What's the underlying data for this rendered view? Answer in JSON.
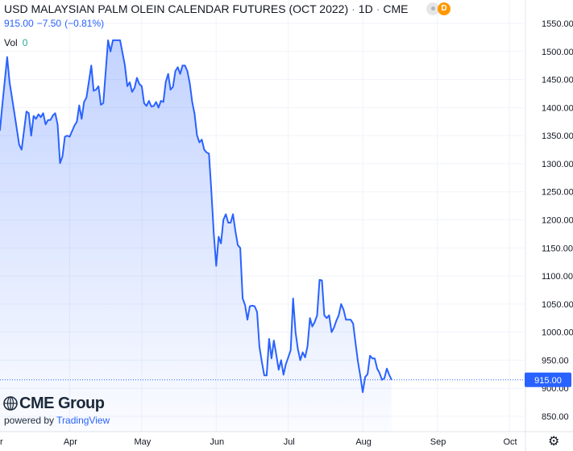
{
  "header": {
    "symbol_title": "USD MALAYSIAN PALM OLEIN CALENDAR FUTURES (OCT 2022)",
    "interval": "1D",
    "exchange": "CME",
    "separator": "·",
    "last_price": "915.00",
    "change": "−7.50",
    "change_pct": "(−0.81%)",
    "vol_label": "Vol",
    "vol_value": "0",
    "badge_letter": "D"
  },
  "branding": {
    "cme": "CME Group",
    "powered_by": "powered by",
    "tradingview": "TradingView"
  },
  "last_price_label": "915.00",
  "colors": {
    "line": "#2962ff",
    "area_top": "#2962ff",
    "price_label_bg": "#2962ff",
    "badge": "#ff9800"
  },
  "icons": {
    "settings": "gear-icon"
  },
  "chart_data": {
    "type": "area",
    "title": "USD MALAYSIAN PALM OLEIN CALENDAR FUTURES (OCT 2022)",
    "y_ticks": [
      1550,
      1500,
      1450,
      1400,
      1350,
      1300,
      1250,
      1200,
      1150,
      1100,
      1050,
      1000,
      950,
      900,
      850
    ],
    "ylim": [
      830,
      1570
    ],
    "x_tick_labels": [
      "r",
      "Apr",
      "May",
      "Jun",
      "Jul",
      "Aug",
      "Sep",
      "Oct"
    ],
    "x_tick_dates": [
      "2022-03-01",
      "2022-04-01",
      "2022-05-01",
      "2022-06-01",
      "2022-07-01",
      "2022-08-01",
      "2022-09-01",
      "2022-10-01"
    ],
    "xlim": [
      "2022-03-01",
      "2022-10-01"
    ],
    "grid": true,
    "series": [
      {
        "points": [
          [
            "2022-03-01",
            1368
          ],
          [
            "2022-03-02",
            1407
          ],
          [
            "2022-03-03",
            1360
          ],
          [
            "2022-03-04",
            1405
          ],
          [
            "2022-03-06",
            1490
          ],
          [
            "2022-03-07",
            1445
          ],
          [
            "2022-03-09",
            1390
          ],
          [
            "2022-03-11",
            1334
          ],
          [
            "2022-03-12",
            1325
          ],
          [
            "2022-03-14",
            1393
          ],
          [
            "2022-03-15",
            1390
          ],
          [
            "2022-03-16",
            1350
          ],
          [
            "2022-03-17",
            1385
          ],
          [
            "2022-03-18",
            1380
          ],
          [
            "2022-03-19",
            1388
          ],
          [
            "2022-03-20",
            1383
          ],
          [
            "2022-03-21",
            1390
          ],
          [
            "2022-03-22",
            1370
          ],
          [
            "2022-03-23",
            1378
          ],
          [
            "2022-03-24",
            1378
          ],
          [
            "2022-03-25",
            1386
          ],
          [
            "2022-03-26",
            1390
          ],
          [
            "2022-03-27",
            1370
          ],
          [
            "2022-03-28",
            1301
          ],
          [
            "2022-03-29",
            1313
          ],
          [
            "2022-03-30",
            1348
          ],
          [
            "2022-03-31",
            1350
          ],
          [
            "2022-04-01",
            1348
          ],
          [
            "2022-04-03",
            1368
          ],
          [
            "2022-04-04",
            1375
          ],
          [
            "2022-04-05",
            1404
          ],
          [
            "2022-04-06",
            1380
          ],
          [
            "2022-04-07",
            1410
          ],
          [
            "2022-04-08",
            1418
          ],
          [
            "2022-04-10",
            1475
          ],
          [
            "2022-04-11",
            1430
          ],
          [
            "2022-04-12",
            1432
          ],
          [
            "2022-04-13",
            1438
          ],
          [
            "2022-04-14",
            1405
          ],
          [
            "2022-04-15",
            1408
          ],
          [
            "2022-04-17",
            1520
          ],
          [
            "2022-04-18",
            1500
          ],
          [
            "2022-04-19",
            1520
          ],
          [
            "2022-04-20",
            1520
          ],
          [
            "2022-04-22",
            1520
          ],
          [
            "2022-04-24",
            1475
          ],
          [
            "2022-04-25",
            1438
          ],
          [
            "2022-04-26",
            1445
          ],
          [
            "2022-04-27",
            1428
          ],
          [
            "2022-04-28",
            1435
          ],
          [
            "2022-04-29",
            1453
          ],
          [
            "2022-04-30",
            1442
          ],
          [
            "2022-05-01",
            1438
          ],
          [
            "2022-05-02",
            1408
          ],
          [
            "2022-05-03",
            1403
          ],
          [
            "2022-05-04",
            1412
          ],
          [
            "2022-05-05",
            1402
          ],
          [
            "2022-05-06",
            1403
          ],
          [
            "2022-05-07",
            1410
          ],
          [
            "2022-05-08",
            1400
          ],
          [
            "2022-05-09",
            1412
          ],
          [
            "2022-05-10",
            1410
          ],
          [
            "2022-05-11",
            1446
          ],
          [
            "2022-05-12",
            1460
          ],
          [
            "2022-05-13",
            1432
          ],
          [
            "2022-05-14",
            1437
          ],
          [
            "2022-05-15",
            1465
          ],
          [
            "2022-05-16",
            1472
          ],
          [
            "2022-05-17",
            1460
          ],
          [
            "2022-05-18",
            1475
          ],
          [
            "2022-05-19",
            1475
          ],
          [
            "2022-05-20",
            1465
          ],
          [
            "2022-05-21",
            1443
          ],
          [
            "2022-05-22",
            1410
          ],
          [
            "2022-05-23",
            1389
          ],
          [
            "2022-05-24",
            1351
          ],
          [
            "2022-05-25",
            1338
          ],
          [
            "2022-05-26",
            1343
          ],
          [
            "2022-05-27",
            1325
          ],
          [
            "2022-05-28",
            1320
          ],
          [
            "2022-05-29",
            1318
          ],
          [
            "2022-05-30",
            1250
          ],
          [
            "2022-05-31",
            1175
          ],
          [
            "2022-06-01",
            1118
          ],
          [
            "2022-06-02",
            1170
          ],
          [
            "2022-06-03",
            1158
          ],
          [
            "2022-06-04",
            1200
          ],
          [
            "2022-06-05",
            1210
          ],
          [
            "2022-06-06",
            1195
          ],
          [
            "2022-06-07",
            1195
          ],
          [
            "2022-06-08",
            1210
          ],
          [
            "2022-06-09",
            1180
          ],
          [
            "2022-06-10",
            1155
          ],
          [
            "2022-06-11",
            1150
          ],
          [
            "2022-06-12",
            1060
          ],
          [
            "2022-06-13",
            1048
          ],
          [
            "2022-06-14",
            1022
          ],
          [
            "2022-06-15",
            1046
          ],
          [
            "2022-06-16",
            1047
          ],
          [
            "2022-06-17",
            1046
          ],
          [
            "2022-06-18",
            1036
          ],
          [
            "2022-06-19",
            974
          ],
          [
            "2022-06-20",
            947
          ],
          [
            "2022-06-21",
            923
          ],
          [
            "2022-06-22",
            923
          ],
          [
            "2022-06-23",
            988
          ],
          [
            "2022-06-24",
            953
          ],
          [
            "2022-06-25",
            985
          ],
          [
            "2022-06-26",
            960
          ],
          [
            "2022-06-27",
            933
          ],
          [
            "2022-06-28",
            950
          ],
          [
            "2022-06-29",
            924
          ],
          [
            "2022-06-30",
            943
          ],
          [
            "2022-07-01",
            955
          ],
          [
            "2022-07-02",
            968
          ],
          [
            "2022-07-03",
            1060
          ],
          [
            "2022-07-04",
            1000
          ],
          [
            "2022-07-05",
            970
          ],
          [
            "2022-07-06",
            950
          ],
          [
            "2022-07-07",
            964
          ],
          [
            "2022-07-08",
            955
          ],
          [
            "2022-07-09",
            975
          ],
          [
            "2022-07-10",
            1025
          ],
          [
            "2022-07-11",
            1010
          ],
          [
            "2022-07-12",
            1018
          ],
          [
            "2022-07-13",
            1030
          ],
          [
            "2022-07-14",
            1093
          ],
          [
            "2022-07-15",
            1092
          ],
          [
            "2022-07-16",
            1030
          ],
          [
            "2022-07-17",
            1025
          ],
          [
            "2022-07-18",
            1030
          ],
          [
            "2022-07-19",
            1000
          ],
          [
            "2022-07-20",
            1008
          ],
          [
            "2022-07-21",
            1020
          ],
          [
            "2022-07-22",
            1030
          ],
          [
            "2022-07-23",
            1050
          ],
          [
            "2022-07-24",
            1040
          ],
          [
            "2022-07-25",
            1022
          ],
          [
            "2022-07-26",
            1022
          ],
          [
            "2022-07-27",
            1022
          ],
          [
            "2022-07-28",
            1015
          ],
          [
            "2022-07-29",
            980
          ],
          [
            "2022-07-30",
            947
          ],
          [
            "2022-07-31",
            921
          ],
          [
            "2022-08-01",
            893
          ],
          [
            "2022-08-02",
            920
          ],
          [
            "2022-08-03",
            925
          ],
          [
            "2022-08-04",
            958
          ],
          [
            "2022-08-05",
            953
          ],
          [
            "2022-08-06",
            953
          ],
          [
            "2022-08-07",
            935
          ],
          [
            "2022-08-08",
            927
          ],
          [
            "2022-08-09",
            915
          ],
          [
            "2022-08-10",
            918
          ],
          [
            "2022-08-11",
            935
          ],
          [
            "2022-08-12",
            924
          ],
          [
            "2022-08-13",
            915
          ]
        ]
      }
    ]
  }
}
